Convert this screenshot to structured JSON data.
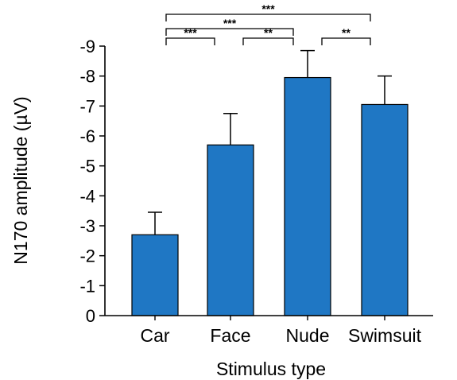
{
  "chart_data": {
    "type": "bar",
    "categories": [
      "Car",
      "Face",
      "Nude",
      "Swimsuit"
    ],
    "values": [
      -2.7,
      -5.7,
      -7.95,
      -7.05
    ],
    "error": [
      0.75,
      1.05,
      0.9,
      0.95
    ],
    "xlabel": "Stimulus type",
    "ylabel": "N170 amplitude (µV)",
    "ylim": [
      0,
      -9
    ],
    "yticks": [
      0,
      -1,
      -2,
      -3,
      -4,
      -5,
      -6,
      -7,
      -8,
      -9
    ],
    "ytick_labels": [
      "0",
      "-1",
      "-2",
      "-3",
      "-4",
      "-5",
      "-6",
      "-7",
      "-8",
      "-9"
    ],
    "y_axis_inverted": true,
    "bar_color": "#1f77c4",
    "bar_edge_color": "#000000",
    "grid": false,
    "legend": "none",
    "significance": [
      {
        "from": "Car",
        "to": "Face",
        "label": "***"
      },
      {
        "from": "Face",
        "to": "Nude",
        "label": "**"
      },
      {
        "from": "Nude",
        "to": "Swimsuit",
        "label": "**"
      },
      {
        "from": "Car",
        "to": "Nude",
        "label": "***"
      },
      {
        "from": "Car",
        "to": "Swimsuit",
        "label": "***"
      }
    ]
  }
}
